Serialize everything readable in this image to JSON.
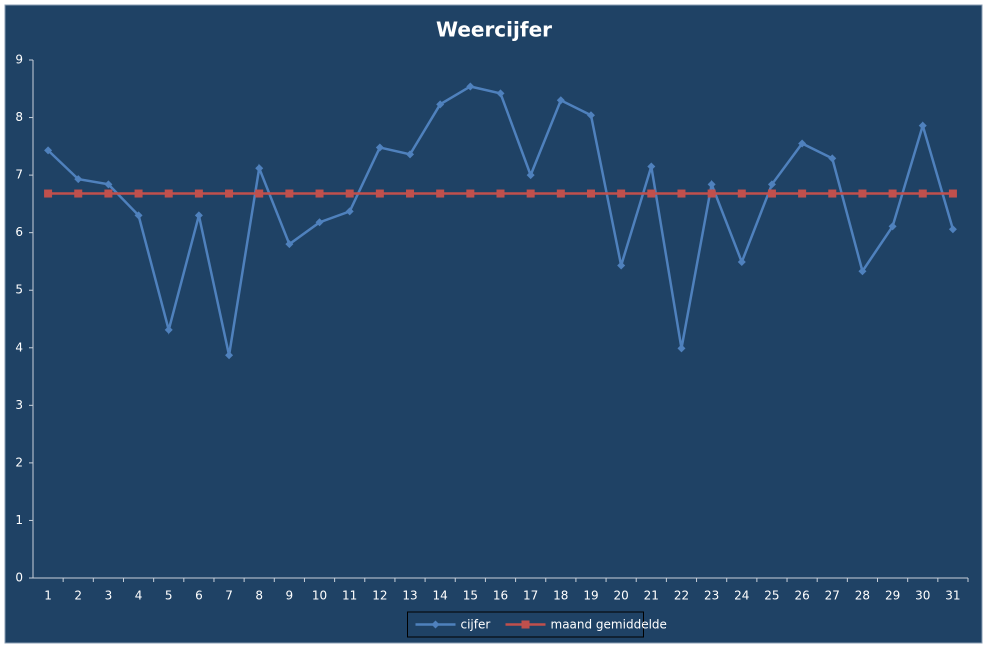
{
  "chart_data": {
    "type": "line",
    "title": "Weercijfer",
    "categories": [
      "1",
      "2",
      "3",
      "4",
      "5",
      "6",
      "7",
      "8",
      "9",
      "10",
      "11",
      "12",
      "13",
      "14",
      "15",
      "16",
      "17",
      "18",
      "19",
      "20",
      "21",
      "22",
      "23",
      "24",
      "25",
      "26",
      "27",
      "28",
      "29",
      "30",
      "31"
    ],
    "series": [
      {
        "name": "cijfer",
        "color": "#4f81bd",
        "marker": "diamond",
        "values": [
          7.43,
          6.93,
          6.84,
          6.3,
          4.31,
          6.3,
          3.87,
          7.12,
          5.8,
          6.18,
          6.37,
          7.48,
          7.36,
          8.23,
          8.54,
          8.42,
          7.0,
          8.3,
          8.04,
          5.43,
          7.15,
          3.99,
          6.84,
          5.49,
          6.84,
          7.55,
          7.29,
          5.33,
          6.11,
          7.86,
          6.06
        ]
      },
      {
        "name": "maand gemiddelde",
        "color": "#c0504d",
        "marker": "square",
        "values": [
          6.68,
          6.68,
          6.68,
          6.68,
          6.68,
          6.68,
          6.68,
          6.68,
          6.68,
          6.68,
          6.68,
          6.68,
          6.68,
          6.68,
          6.68,
          6.68,
          6.68,
          6.68,
          6.68,
          6.68,
          6.68,
          6.68,
          6.68,
          6.68,
          6.68,
          6.68,
          6.68,
          6.68,
          6.68,
          6.68,
          6.68
        ]
      }
    ],
    "ylim": [
      0,
      9
    ],
    "yticks": [
      0,
      1,
      2,
      3,
      4,
      5,
      6,
      7,
      8,
      9
    ],
    "grid": false,
    "legend": "bottom"
  }
}
